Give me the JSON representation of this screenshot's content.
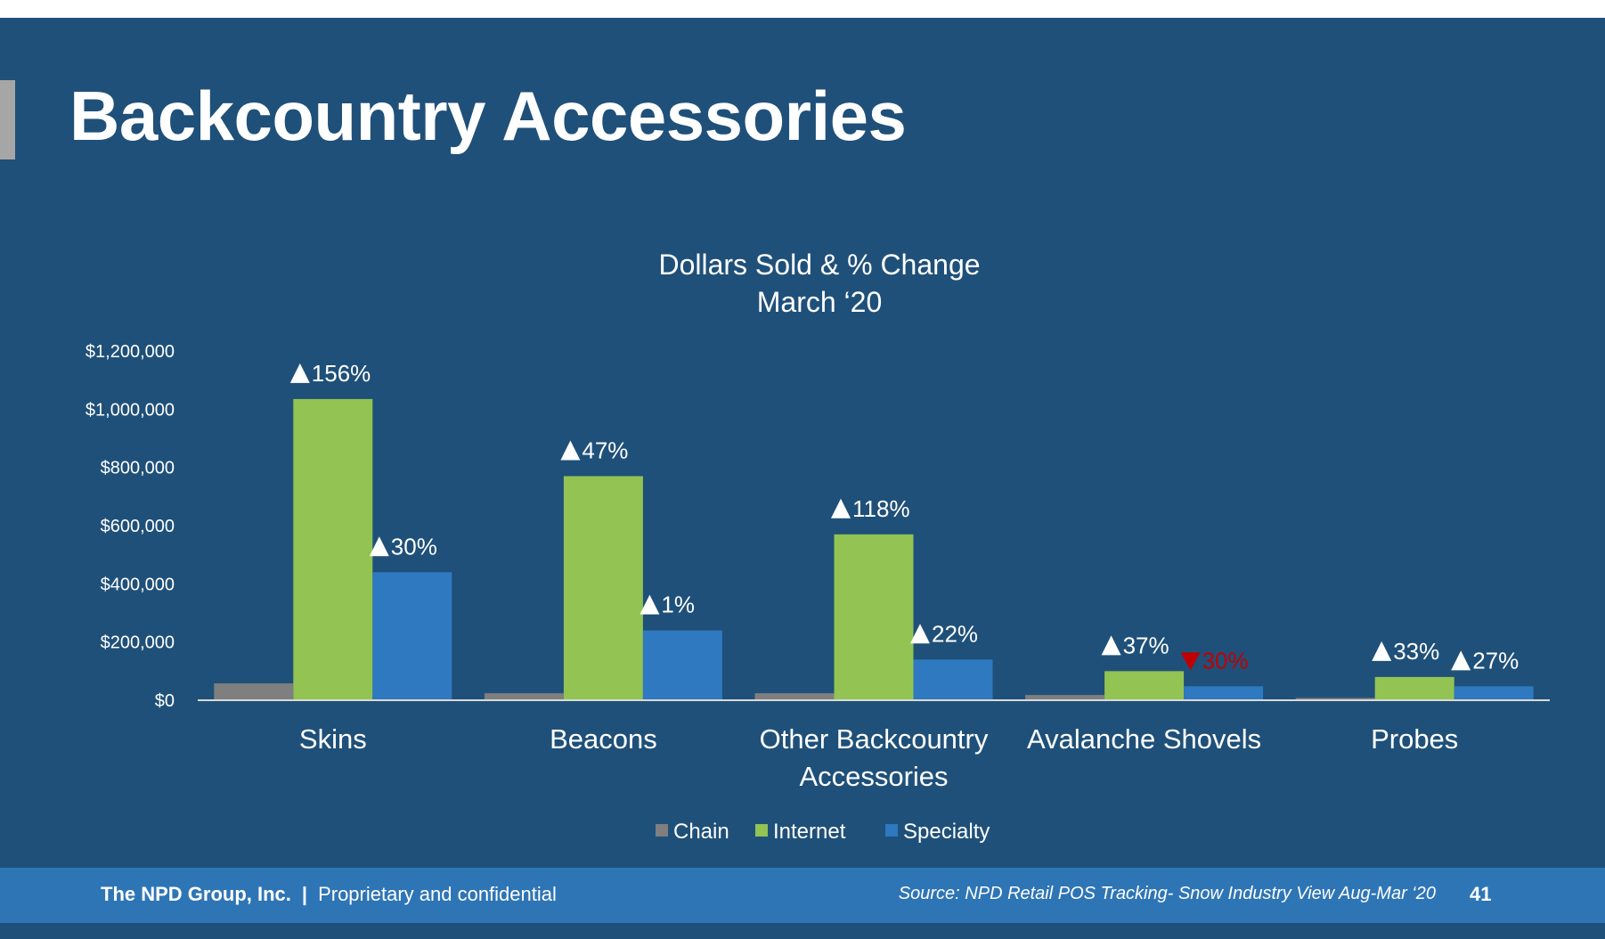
{
  "slide": {
    "title": "Backcountry Accessories"
  },
  "footer": {
    "company": "The NPD Group, Inc.",
    "separator": "|",
    "confidential": "Proprietary and confidential",
    "source": "Source: NPD Retail POS Tracking- Snow Industry View Aug-Mar ‘20",
    "page_number": "41"
  },
  "colors": {
    "background": "#1f5079",
    "footer": "#2e75b6",
    "chain": "#7f7f7f",
    "internet": "#92c353",
    "specialty": "#2e79bf",
    "increase_marker": "#ffffff",
    "decrease_marker": "#c00000"
  },
  "chart_data": {
    "type": "bar",
    "title": "Dollars Sold & % Change",
    "subtitle": "March ‘20",
    "xlabel": "",
    "ylabel": "",
    "ylim": [
      0,
      1200000
    ],
    "yticks": [
      0,
      200000,
      400000,
      600000,
      800000,
      1000000,
      1200000
    ],
    "ytick_labels": [
      "$0",
      "$200,000",
      "$400,000",
      "$600,000",
      "$800,000",
      "$1,000,000",
      "$1,200,000"
    ],
    "grid": false,
    "legend_position": "bottom",
    "categories": [
      "Skins",
      "Beacons",
      "Other Backcountry Accessories",
      "Avalanche Shovels",
      "Probes"
    ],
    "category_label_lines": [
      [
        "Skins"
      ],
      [
        "Beacons"
      ],
      [
        "Other Backcountry",
        "Accessories"
      ],
      [
        "Avalanche Shovels"
      ],
      [
        "Probes"
      ]
    ],
    "series": [
      {
        "name": "Chain",
        "values": [
          58000,
          24000,
          24000,
          18000,
          8000
        ],
        "pct_change": [
          null,
          null,
          null,
          null,
          null
        ],
        "direction": [
          null,
          null,
          null,
          null,
          null
        ]
      },
      {
        "name": "Internet",
        "values": [
          1035000,
          770000,
          570000,
          100000,
          80000
        ],
        "pct_change": [
          "156%",
          "47%",
          "118%",
          "37%",
          "33%"
        ],
        "direction": [
          "up",
          "up",
          "up",
          "up",
          "up"
        ]
      },
      {
        "name": "Specialty",
        "values": [
          440000,
          240000,
          140000,
          48000,
          48000
        ],
        "pct_change": [
          "30%",
          "1%",
          "22%",
          "30%",
          "27%"
        ],
        "direction": [
          "up",
          "up",
          "up",
          "down",
          "up"
        ]
      }
    ]
  }
}
